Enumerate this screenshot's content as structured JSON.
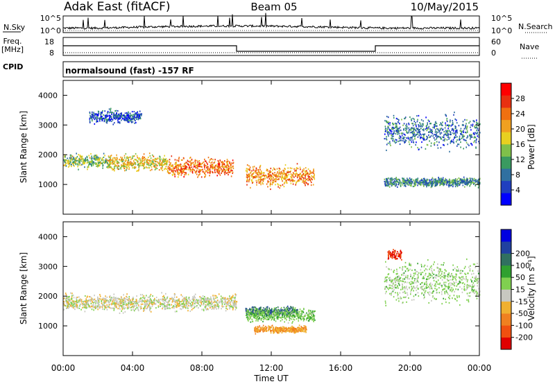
{
  "header": {
    "station": "Adak East (fitACF)",
    "beam": "Beam 05",
    "date": "10/May/2015"
  },
  "noise_panel": {
    "left_label": "N.Sky",
    "right_label": "N.Search",
    "left_ticks": [
      "10^5",
      "10^0"
    ],
    "right_ticks": [
      "10^5",
      "10^0"
    ]
  },
  "freq_panel": {
    "left_label_line1": "Freq.",
    "left_label_line2": "[MHz]",
    "right_label": "Nave",
    "left_ticks": [
      "18",
      "8"
    ],
    "right_ticks": [
      "60",
      "0"
    ]
  },
  "cpid_panel": {
    "label": "CPID",
    "text": "normalsound (fast) -157 RF"
  },
  "colors": {
    "power": [
      "#0000ff",
      "#1f3fbf",
      "#3070a0",
      "#3a9a60",
      "#7fc04a",
      "#e8d020",
      "#f0a020",
      "#f07010",
      "#e83010",
      "#ff0000"
    ],
    "velocity": [
      "#e00000",
      "#f05010",
      "#f08020",
      "#f0b030",
      "#c8c8c0",
      "#80d050",
      "#30a030",
      "#307060",
      "#2040a0",
      "#0000e0"
    ]
  },
  "chart_data": [
    {
      "type": "heatmap",
      "title": "",
      "xlabel": "",
      "ylabel": "Slant Range [km]",
      "xlim": [
        "00:00",
        "24:00"
      ],
      "ylim": [
        0,
        4500
      ],
      "yticks": [
        1000,
        2000,
        3000,
        4000
      ],
      "colorbar": {
        "label": "Power [dB]",
        "ticks": [
          4,
          8,
          12,
          16,
          20,
          24,
          28
        ],
        "range": [
          0,
          32
        ]
      },
      "features": [
        {
          "t_start": 0.0,
          "t_end": 2.5,
          "range_km": 1800,
          "width_km": 300,
          "power_db": 14
        },
        {
          "t_start": 2.5,
          "t_end": 6.0,
          "range_km": 1750,
          "width_km": 350,
          "power_db": 18
        },
        {
          "t_start": 6.0,
          "t_end": 9.8,
          "range_km": 1600,
          "width_km": 400,
          "power_db": 24
        },
        {
          "t_start": 10.5,
          "t_end": 14.5,
          "range_km": 1300,
          "width_km": 450,
          "power_db": 22
        },
        {
          "t_start": 1.5,
          "t_end": 4.5,
          "range_km": 3300,
          "width_km": 300,
          "power_db": 6
        },
        {
          "t_start": 18.5,
          "t_end": 24.0,
          "range_km": 1100,
          "width_km": 200,
          "power_db": 10
        },
        {
          "t_start": 18.5,
          "t_end": 24.0,
          "range_km": 2800,
          "width_km": 700,
          "power_db": 8
        }
      ]
    },
    {
      "type": "heatmap",
      "title": "",
      "xlabel": "Time UT",
      "ylabel": "Slant Range [km]",
      "xlim": [
        "00:00",
        "24:00"
      ],
      "xticks": [
        "00:00",
        "04:00",
        "08:00",
        "12:00",
        "16:00",
        "20:00",
        "00:00"
      ],
      "ylim": [
        0,
        4500
      ],
      "yticks": [
        1000,
        2000,
        3000,
        4000
      ],
      "colorbar": {
        "label": "Velocity [m s⁻¹]",
        "ticks": [
          -200,
          -100,
          -50,
          -15,
          15,
          50,
          100,
          200
        ],
        "range": [
          -250,
          250
        ]
      },
      "features": [
        {
          "t_start": 0.0,
          "t_end": 10.0,
          "range_km": 1800,
          "width_km": 350,
          "velocity": 0
        },
        {
          "t_start": 10.5,
          "t_end": 13.5,
          "range_km": 1500,
          "width_km": 200,
          "velocity": 200
        },
        {
          "t_start": 10.5,
          "t_end": 14.5,
          "range_km": 1400,
          "width_km": 300,
          "velocity": 40
        },
        {
          "t_start": 11.0,
          "t_end": 14.0,
          "range_km": 900,
          "width_km": 150,
          "velocity": -50
        },
        {
          "t_start": 18.5,
          "t_end": 24.0,
          "range_km": 2500,
          "width_km": 900,
          "velocity": 25
        },
        {
          "t_start": 18.7,
          "t_end": 19.5,
          "range_km": 3400,
          "width_km": 200,
          "velocity": -200
        }
      ]
    }
  ]
}
